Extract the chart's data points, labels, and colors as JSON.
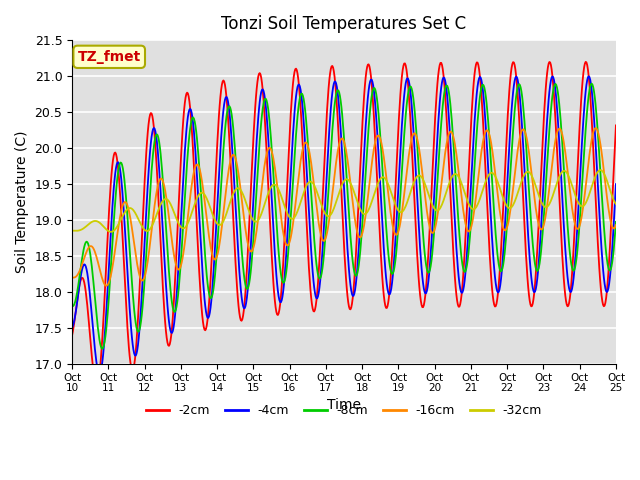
{
  "title": "Tonzi Soil Temperatures Set C",
  "xlabel": "Time",
  "ylabel": "Soil Temperature (C)",
  "annotation": "TZ_fmet",
  "annotation_color": "#cc0000",
  "annotation_bg": "#ffffcc",
  "ylim": [
    17.0,
    21.5
  ],
  "xlim": [
    0,
    15
  ],
  "series_colors": [
    "#ff0000",
    "#0000ff",
    "#00cc00",
    "#ff8800",
    "#cccc00"
  ],
  "series_labels": [
    "-2cm",
    "-4cm",
    "-8cm",
    "-16cm",
    "-32cm"
  ],
  "xtick_labels": [
    "Oct\n10",
    "Oct\n11",
    "Oct\n12",
    "Oct\n13",
    "Oct\n14",
    "Oct\n15",
    "Oct\n16",
    "Oct\n17",
    "Oct\n18",
    "Oct\n19",
    "Oct\n20",
    "Oct\n21",
    "Oct\n22",
    "Oct\n23",
    "Oct\n24",
    "Oct\n25"
  ],
  "plot_bg": "#e0e0e0",
  "grid_color": "#ffffff",
  "n_points": 720,
  "yticks": [
    17.0,
    17.5,
    18.0,
    18.5,
    19.0,
    19.5,
    20.0,
    20.5,
    21.0,
    21.5
  ]
}
